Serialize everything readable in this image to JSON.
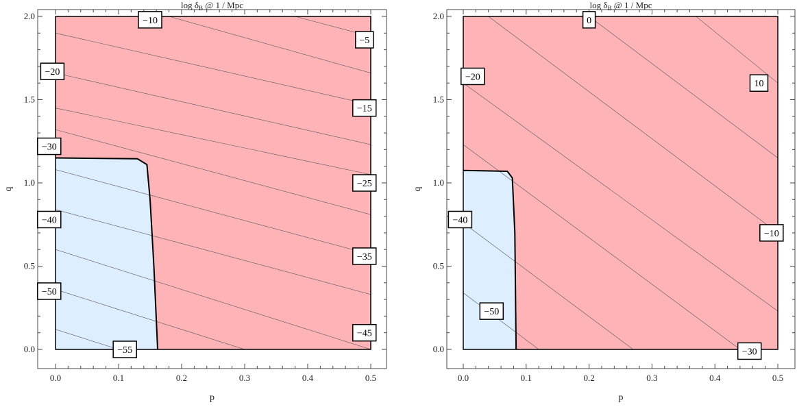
{
  "chart_data": [
    {
      "type": "contour",
      "title": "log δ_B @ 1 / Mpc",
      "xlabel": "p",
      "ylabel": "q",
      "xlim": [
        0.0,
        0.5
      ],
      "ylim": [
        0.0,
        2.0
      ],
      "xticks": [
        "0.0",
        "0.1",
        "0.2",
        "0.3",
        "0.4",
        "0.5"
      ],
      "yticks": [
        "0.0",
        "0.5",
        "1.0",
        "1.5",
        "2.0"
      ],
      "regions": {
        "allowed_color": "#dceeff",
        "excluded_color": "#feb4b7"
      },
      "boundary": [
        [
          0.0,
          1.15
        ],
        [
          0.13,
          1.145
        ],
        [
          0.145,
          1.11
        ],
        [
          0.15,
          0.9
        ],
        [
          0.156,
          0.5
        ],
        [
          0.162,
          0.0
        ]
      ],
      "contours": [
        {
          "level": -55,
          "points": [
            [
              0.0,
              0.12
            ],
            [
              0.1,
              0.0
            ]
          ]
        },
        {
          "level": -50,
          "points": [
            [
              0.0,
              0.36
            ],
            [
              0.1,
              0.24
            ],
            [
              0.2,
              0.12
            ],
            [
              0.3,
              0.0
            ]
          ]
        },
        {
          "level": -45,
          "points": [
            [
              0.0,
              0.6
            ],
            [
              0.5,
              0.0
            ]
          ]
        },
        {
          "level": -40,
          "points": [
            [
              0.0,
              0.84
            ],
            [
              0.5,
              0.33
            ]
          ]
        },
        {
          "level": -35,
          "points": [
            [
              0.0,
              1.08
            ],
            [
              0.5,
              0.57
            ]
          ]
        },
        {
          "level": -30,
          "points": [
            [
              0.0,
              1.32
            ],
            [
              0.5,
              0.81
            ]
          ]
        },
        {
          "level": -25,
          "points": [
            [
              0.0,
              1.45
            ],
            [
              0.5,
              1.05
            ]
          ]
        },
        {
          "level": -20,
          "points": [
            [
              0.0,
              1.66
            ],
            [
              0.5,
              1.23
            ]
          ]
        },
        {
          "level": -15,
          "points": [
            [
              0.0,
              1.9
            ],
            [
              0.5,
              1.47
            ]
          ]
        },
        {
          "level": -10,
          "points": [
            [
              0.18,
              2.0
            ],
            [
              0.5,
              1.66
            ]
          ]
        },
        {
          "level": -5,
          "points": [
            [
              0.38,
              2.0
            ],
            [
              0.5,
              1.88
            ]
          ]
        }
      ],
      "labels": [
        {
          "text": "−10",
          "x": 0.15,
          "y": 1.98
        },
        {
          "text": "−5",
          "x": 0.49,
          "y": 1.86
        },
        {
          "text": "−20",
          "x": -0.005,
          "y": 1.67
        },
        {
          "text": "−15",
          "x": 0.49,
          "y": 1.45
        },
        {
          "text": "−30",
          "x": -0.01,
          "y": 1.22
        },
        {
          "text": "−25",
          "x": 0.49,
          "y": 1.0
        },
        {
          "text": "−40",
          "x": -0.01,
          "y": 0.78
        },
        {
          "text": "−35",
          "x": 0.49,
          "y": 0.56
        },
        {
          "text": "−50",
          "x": -0.01,
          "y": 0.35
        },
        {
          "text": "−45",
          "x": 0.49,
          "y": 0.1
        },
        {
          "text": "−55",
          "x": 0.11,
          "y": 0.0
        }
      ]
    },
    {
      "type": "contour",
      "title": "log δ_B @ 1 / Mpc",
      "xlabel": "p",
      "ylabel": "q",
      "xlim": [
        0.0,
        0.5
      ],
      "ylim": [
        0.0,
        2.0
      ],
      "xticks": [
        "0.0",
        "0.1",
        "0.2",
        "0.3",
        "0.4",
        "0.5"
      ],
      "yticks": [
        "0.0",
        "0.5",
        "1.0",
        "1.5",
        "2.0"
      ],
      "regions": {
        "allowed_color": "#dceeff",
        "excluded_color": "#feb4b7"
      },
      "boundary": [
        [
          0.0,
          1.075
        ],
        [
          0.07,
          1.07
        ],
        [
          0.078,
          1.03
        ],
        [
          0.082,
          0.7
        ],
        [
          0.084,
          0.0
        ]
      ],
      "contours": [
        {
          "level": -50,
          "points": [
            [
              0.0,
              0.34
            ],
            [
              0.12,
              0.0
            ]
          ]
        },
        {
          "level": -40,
          "points": [
            [
              0.0,
              0.76
            ],
            [
              0.27,
              0.0
            ]
          ]
        },
        {
          "level": -30,
          "points": [
            [
              0.0,
              1.23
            ],
            [
              0.44,
              0.0
            ]
          ]
        },
        {
          "level": -20,
          "points": [
            [
              0.0,
              1.6
            ],
            [
              0.5,
              0.23
            ]
          ]
        },
        {
          "level": -10,
          "points": [
            [
              0.04,
              2.0
            ],
            [
              0.5,
              0.7
            ]
          ]
        },
        {
          "level": 0,
          "points": [
            [
              0.2,
              2.0
            ],
            [
              0.5,
              1.15
            ]
          ]
        },
        {
          "level": 10,
          "points": [
            [
              0.37,
              2.0
            ],
            [
              0.5,
              1.6
            ]
          ]
        }
      ],
      "labels": [
        {
          "text": "0",
          "x": 0.2,
          "y": 1.98
        },
        {
          "text": "−20",
          "x": 0.015,
          "y": 1.64
        },
        {
          "text": "10",
          "x": 0.47,
          "y": 1.6
        },
        {
          "text": "−40",
          "x": -0.005,
          "y": 0.78
        },
        {
          "text": "−10",
          "x": 0.49,
          "y": 0.7
        },
        {
          "text": "−50",
          "x": 0.045,
          "y": 0.23
        },
        {
          "text": "−30",
          "x": 0.455,
          "y": -0.01
        }
      ]
    }
  ]
}
